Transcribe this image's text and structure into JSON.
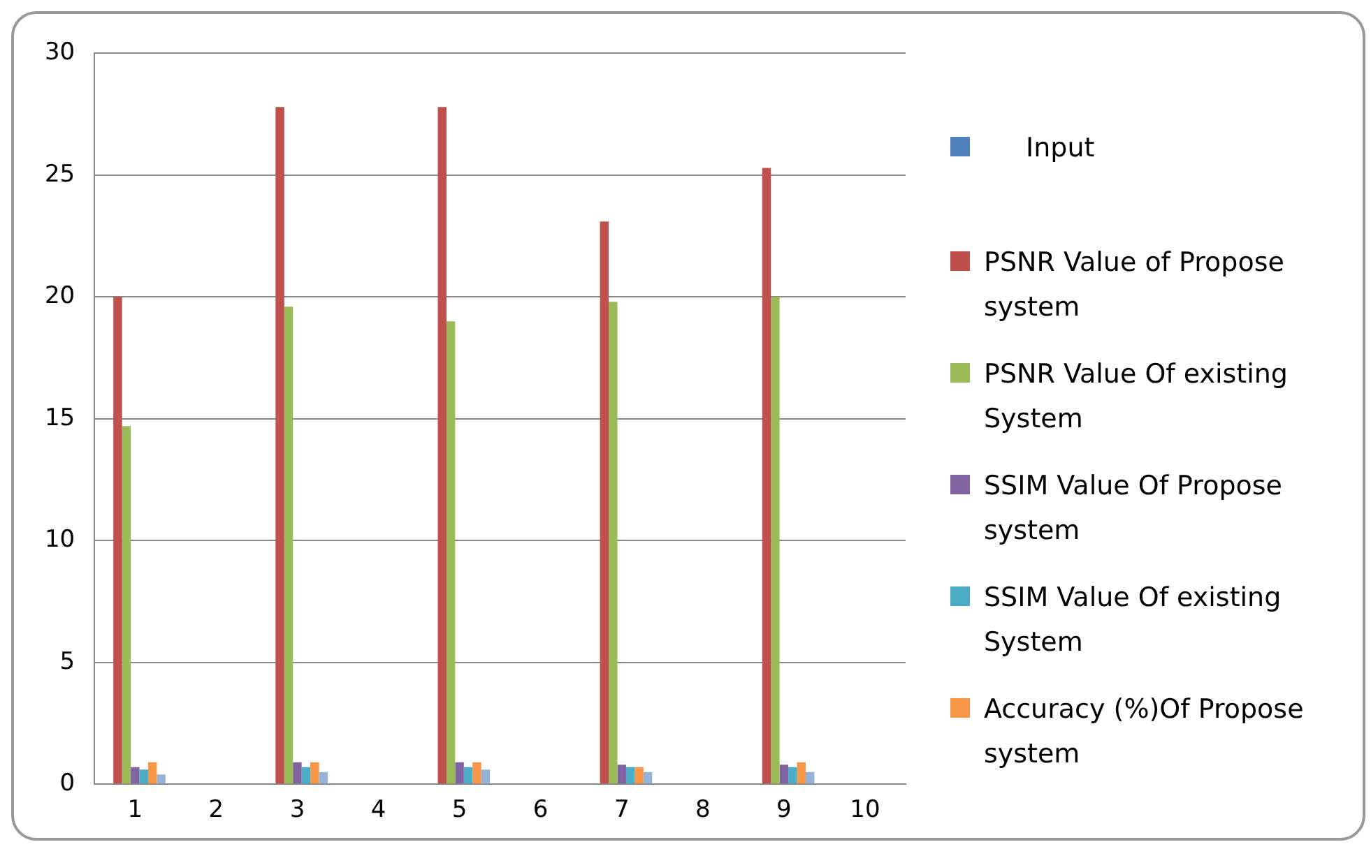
{
  "chart_data": {
    "type": "bar",
    "categories": [
      "1",
      "2",
      "3",
      "4",
      "5",
      "6",
      "7",
      "8",
      "9",
      "10"
    ],
    "series": [
      {
        "name": "Input",
        "color": "#4f81bd",
        "values": [
          null,
          null,
          null,
          null,
          null,
          null,
          null,
          null,
          null,
          null
        ]
      },
      {
        "name": "PSNR Value of Propose system",
        "color": "#c0504d",
        "values": [
          20,
          null,
          27.8,
          null,
          27.8,
          null,
          23.1,
          null,
          25.3,
          null
        ]
      },
      {
        "name": "PSNR Value Of existing System",
        "color": "#9bbb59",
        "values": [
          14.7,
          null,
          19.6,
          null,
          19.0,
          null,
          19.8,
          null,
          20.0,
          null
        ]
      },
      {
        "name": "SSIM Value Of Propose system",
        "color": "#8064a2",
        "values": [
          0.7,
          null,
          0.9,
          null,
          0.9,
          null,
          0.8,
          null,
          0.8,
          null
        ]
      },
      {
        "name": "SSIM Value Of existing System",
        "color": "#4bacc6",
        "values": [
          0.6,
          null,
          0.7,
          null,
          0.7,
          null,
          0.7,
          null,
          0.7,
          null
        ]
      },
      {
        "name": "Accuracy (%)Of Propose system",
        "color": "#f79646",
        "values": [
          0.9,
          null,
          0.9,
          null,
          0.9,
          null,
          0.7,
          null,
          0.9,
          null
        ]
      },
      {
        "color": "#95b3d7",
        "values": [
          0.4,
          null,
          0.5,
          null,
          0.6,
          null,
          0.5,
          null,
          0.5,
          null
        ]
      }
    ],
    "ylim": [
      0,
      30
    ],
    "yticks": [
      0,
      5,
      10,
      15,
      20,
      25,
      30
    ],
    "grid": "y",
    "legend": "right"
  }
}
